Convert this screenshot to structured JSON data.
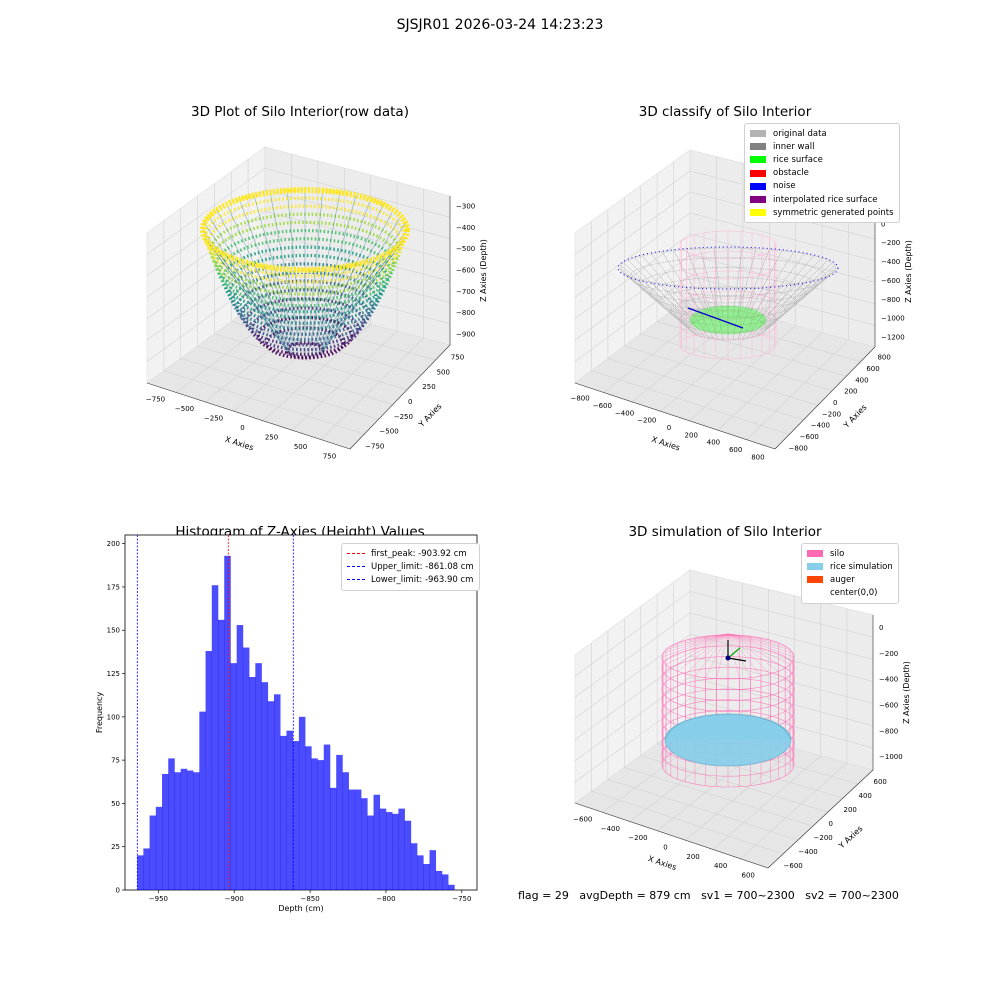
{
  "figure": {
    "title": "SJSJR01 2026-03-24 14:23:23",
    "status": {
      "flag": "flag = 29",
      "avg_depth": "avgDepth = 879 cm",
      "sv1": "sv1 = 700~2300",
      "sv2": "sv2 = 700~2300"
    }
  },
  "panels": {
    "p1": {
      "title": "3D Plot of Silo Interior(row data)",
      "xlabel": "X Axies",
      "ylabel": "Y Axies",
      "zlabel": "Z Axies (Depth)",
      "xticks": [
        "−750",
        "−500",
        "−250",
        "0",
        "250",
        "500",
        "750"
      ],
      "yticks": [
        "−750",
        "−500",
        "−250",
        "0",
        "250",
        "500",
        "750"
      ],
      "zticks": [
        "−300",
        "−400",
        "−500",
        "−600",
        "−700",
        "−800",
        "−900"
      ]
    },
    "p2": {
      "title": "3D classify of Silo Interior",
      "xlabel": "X Axies",
      "ylabel": "Y Axies",
      "zlabel": "Z Axies (Depth)",
      "xticks": [
        "−800",
        "−600",
        "−400",
        "−200",
        "0",
        "200",
        "400",
        "600",
        "800"
      ],
      "yticks": [
        "−800",
        "−600",
        "−400",
        "−200",
        "0",
        "200",
        "400",
        "600",
        "800"
      ],
      "zticks": [
        "200",
        "0",
        "−200",
        "−400",
        "−600",
        "−800",
        "−1000",
        "−1200"
      ],
      "zticks_top": [
        "400",
        "200"
      ],
      "legend": [
        {
          "label": "original data",
          "color": "#b3b3b3"
        },
        {
          "label": "inner wall",
          "color": "#808080"
        },
        {
          "label": "rice surface",
          "color": "#00ff00"
        },
        {
          "label": "obstacle",
          "color": "#ff0000"
        },
        {
          "label": "noise",
          "color": "#0000ff"
        },
        {
          "label": "interpolated rice surface",
          "color": "#800080"
        },
        {
          "label": "symmetric generated points",
          "color": "#ffff00"
        }
      ]
    },
    "p3": {
      "title": "Histogram of Z-Axies (Height) Values",
      "xlabel": "Depth (cm)",
      "ylabel": "Frequency",
      "legend": [
        {
          "label": "first_peak: -903.92 cm",
          "color": "#ff0000"
        },
        {
          "label": "Upper_limit: -861.08 cm",
          "color": "#0000ff"
        },
        {
          "label": "Lower_limit: -963.90 cm",
          "color": "#0000ff"
        }
      ]
    },
    "p4": {
      "title": "3D simulation of Silo Interior",
      "xlabel": "X Axies",
      "ylabel": "Y Axies",
      "zlabel": "Z Axies (Depth)",
      "xticks": [
        "−600",
        "−400",
        "−200",
        "0",
        "200",
        "400",
        "600"
      ],
      "yticks": [
        "−600",
        "−400",
        "−200",
        "0",
        "200",
        "400",
        "600"
      ],
      "zticks": [
        "0",
        "−200",
        "−400",
        "−600",
        "−800",
        "−1000"
      ],
      "legend": [
        {
          "label": "silo",
          "color": "#ff69b4"
        },
        {
          "label": "rice simulation",
          "color": "#87ceeb"
        },
        {
          "label": "auger",
          "color": "#ff4500"
        },
        {
          "label": "center(0,0)",
          "color": ""
        }
      ]
    }
  },
  "chart_data": [
    {
      "type": "scatter",
      "title": "3D Plot of Silo Interior(row data)",
      "dimension": "3d",
      "xlabel": "X Axies",
      "ylabel": "Y Axies",
      "zlabel": "Z Axies (Depth)",
      "xlim": [
        -900,
        900
      ],
      "ylim": [
        -900,
        900
      ],
      "zlim": [
        -980,
        -260
      ],
      "colormap": "viridis",
      "description_points": [
        {
          "x": 0,
          "y": 0,
          "z": -960
        },
        {
          "x": 800,
          "y": 0,
          "z": -300
        },
        {
          "x": -800,
          "y": 0,
          "z": -300
        }
      ]
    },
    {
      "type": "scatter",
      "title": "3D classify of Silo Interior",
      "dimension": "3d",
      "xlabel": "X Axies",
      "ylabel": "Y Axies",
      "zlabel": "Z Axies (Depth)",
      "xlim": [
        -900,
        900
      ],
      "ylim": [
        -900,
        900
      ],
      "zlim": [
        -1300,
        400
      ],
      "legend_position": "top-right"
    },
    {
      "type": "bar",
      "title": "Histogram of Z-Axies (Height) Values",
      "xlabel": "Depth (cm)",
      "ylabel": "Frequency",
      "xlim": [
        -972,
        -740
      ],
      "ylim": [
        0,
        205
      ],
      "xticks": [
        -950,
        -900,
        -850,
        -800,
        -750
      ],
      "yticks": [
        0,
        25,
        50,
        75,
        100,
        125,
        150,
        175,
        200
      ],
      "bin_start": -964,
      "bin_width": 4.1,
      "values": [
        20,
        24,
        43,
        48,
        67,
        76,
        68,
        70,
        69,
        68,
        103,
        138,
        176,
        156,
        193,
        131,
        153,
        140,
        123,
        131,
        120,
        109,
        113,
        89,
        92,
        86,
        100,
        83,
        76,
        75,
        84,
        59,
        78,
        68,
        58,
        58,
        53,
        43,
        55,
        47,
        45,
        44,
        47,
        40,
        27,
        20,
        15,
        23,
        11,
        9,
        3
      ],
      "bar_color": "#0000ff",
      "lines": [
        {
          "name": "first_peak",
          "x": -903.92,
          "color": "#ff0000"
        },
        {
          "name": "Upper_limit",
          "x": -861.08,
          "color": "#0000ff"
        },
        {
          "name": "Lower_limit",
          "x": -963.9,
          "color": "#0000ff"
        }
      ],
      "legend_position": "top-right"
    },
    {
      "type": "scatter",
      "title": "3D simulation of Silo Interior",
      "dimension": "3d",
      "xlabel": "X Axies",
      "ylabel": "Y Axies",
      "zlabel": "Z Axies (Depth)",
      "xlim": [
        -650,
        650
      ],
      "ylim": [
        -650,
        650
      ],
      "zlim": [
        -1150,
        150
      ],
      "legend_position": "top-right"
    }
  ]
}
